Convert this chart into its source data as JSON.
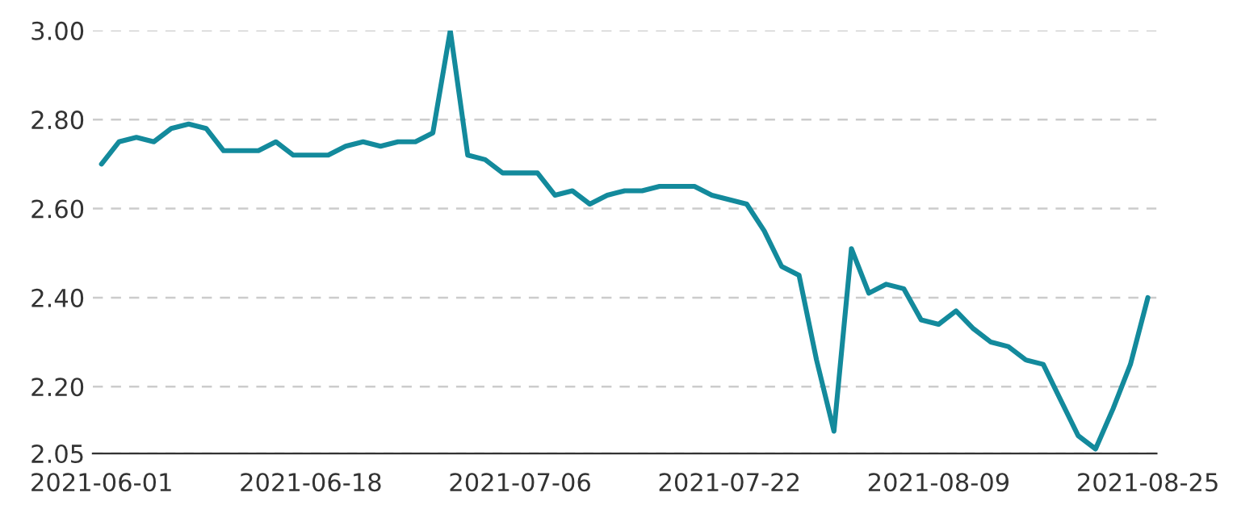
{
  "chart_data": {
    "type": "line",
    "categories": [
      "2021-06-01",
      null,
      null,
      null,
      null,
      null,
      null,
      null,
      null,
      null,
      null,
      null,
      "2021-06-18",
      null,
      null,
      null,
      null,
      null,
      null,
      null,
      null,
      null,
      null,
      null,
      "2021-07-06",
      null,
      null,
      null,
      null,
      null,
      null,
      null,
      null,
      null,
      null,
      null,
      "2021-07-22",
      null,
      null,
      null,
      null,
      null,
      null,
      null,
      null,
      null,
      null,
      null,
      "2021-08-09",
      null,
      null,
      null,
      null,
      null,
      null,
      null,
      null,
      null,
      null,
      null,
      "2021-08-25"
    ],
    "series": [
      {
        "color": "#138a9c",
        "values": [
          2.7,
          2.75,
          2.76,
          2.75,
          2.78,
          2.79,
          2.78,
          2.73,
          2.73,
          2.73,
          2.75,
          2.72,
          2.72,
          2.72,
          2.74,
          2.75,
          2.74,
          2.75,
          2.75,
          2.77,
          3.0,
          2.72,
          2.71,
          2.68,
          2.68,
          2.68,
          2.63,
          2.64,
          2.61,
          2.63,
          2.64,
          2.64,
          2.65,
          2.65,
          2.65,
          2.63,
          2.62,
          2.61,
          2.55,
          2.47,
          2.45,
          2.26,
          2.1,
          2.51,
          2.41,
          2.43,
          2.42,
          2.35,
          2.34,
          2.37,
          2.33,
          2.3,
          2.29,
          2.26,
          2.25,
          2.17,
          2.09,
          2.06,
          2.15,
          2.25,
          2.4
        ]
      }
    ],
    "ylim": [
      2.05,
      3.0
    ],
    "yticks": [
      {
        "value": 2.05,
        "label": "2.05"
      },
      {
        "value": 2.2,
        "label": "2.20"
      },
      {
        "value": 2.4,
        "label": "2.40"
      },
      {
        "value": 2.6,
        "label": "2.60"
      },
      {
        "value": 2.8,
        "label": "2.80"
      },
      {
        "value": 3.0,
        "label": "3.00"
      }
    ],
    "grid": "y",
    "marker": "none",
    "line_style": "solid"
  }
}
